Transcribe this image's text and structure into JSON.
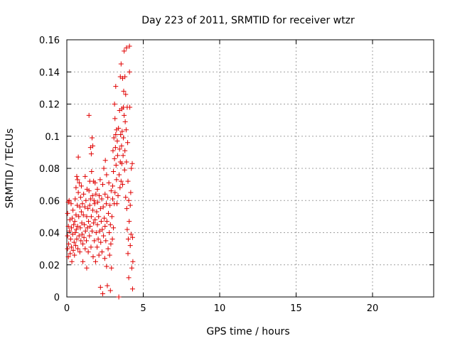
{
  "chart_data": {
    "type": "scatter",
    "title": "Day 223 of 2011, SRMTID for receiver wtzr",
    "xlabel": "GPS time / hours",
    "ylabel": "SRMTID / TECUs",
    "xlim": [
      0,
      24
    ],
    "ylim": [
      0,
      0.16
    ],
    "xticks": [
      0,
      5,
      10,
      15,
      20
    ],
    "yticks": [
      0,
      0.02,
      0.04,
      0.06,
      0.08,
      0.1,
      0.12,
      0.14,
      0.16
    ],
    "xtick_labels": [
      "0",
      "5",
      "10",
      "15",
      "20"
    ],
    "ytick_labels": [
      "0",
      "0.02",
      "0.04",
      "0.06",
      "0.08",
      "0.1",
      "0.12",
      "0.14",
      "0.16"
    ],
    "grid": true,
    "marker": "plus",
    "color": "#e00000",
    "series": [
      {
        "points": [
          [
            0.05,
            0.052
          ],
          [
            0.05,
            0.038
          ],
          [
            0.05,
            0.03
          ],
          [
            0.1,
            0.059
          ],
          [
            0.1,
            0.044
          ],
          [
            0.1,
            0.025
          ],
          [
            0.12,
            0.033
          ],
          [
            0.15,
            0.06
          ],
          [
            0.18,
            0.041
          ],
          [
            0.2,
            0.048
          ],
          [
            0.22,
            0.027
          ],
          [
            0.25,
            0.036
          ],
          [
            0.28,
            0.058
          ],
          [
            0.3,
            0.043
          ],
          [
            0.3,
            0.031
          ],
          [
            0.33,
            0.022
          ],
          [
            0.35,
            0.049
          ],
          [
            0.38,
            0.039
          ],
          [
            0.4,
            0.054
          ],
          [
            0.42,
            0.029
          ],
          [
            0.45,
            0.045
          ],
          [
            0.48,
            0.034
          ],
          [
            0.5,
            0.026
          ],
          [
            0.52,
            0.047
          ],
          [
            0.55,
            0.04
          ],
          [
            0.55,
            0.061
          ],
          [
            0.58,
            0.032
          ],
          [
            0.6,
            0.051
          ],
          [
            0.6,
            0.068
          ],
          [
            0.62,
            0.042
          ],
          [
            0.65,
            0.075
          ],
          [
            0.65,
            0.036
          ],
          [
            0.68,
            0.057
          ],
          [
            0.7,
            0.073
          ],
          [
            0.7,
            0.044
          ],
          [
            0.72,
            0.03
          ],
          [
            0.75,
            0.087
          ],
          [
            0.75,
            0.065
          ],
          [
            0.78,
            0.05
          ],
          [
            0.8,
            0.038
          ],
          [
            0.82,
            0.071
          ],
          [
            0.85,
            0.056
          ],
          [
            0.85,
            0.028
          ],
          [
            0.88,
            0.043
          ],
          [
            0.9,
            0.062
          ],
          [
            0.92,
            0.035
          ],
          [
            0.95,
            0.053
          ],
          [
            0.95,
            0.069
          ],
          [
            0.98,
            0.046
          ],
          [
            1.0,
            0.039
          ],
          [
            1.02,
            0.058
          ],
          [
            1.05,
            0.033
          ],
          [
            1.05,
            0.022
          ],
          [
            1.08,
            0.051
          ],
          [
            1.1,
            0.064
          ],
          [
            1.12,
            0.037
          ],
          [
            1.15,
            0.045
          ],
          [
            1.18,
            0.056
          ],
          [
            1.2,
            0.03
          ],
          [
            1.2,
            0.075
          ],
          [
            1.22,
            0.041
          ],
          [
            1.25,
            0.06
          ],
          [
            1.28,
            0.035
          ],
          [
            1.3,
            0.05
          ],
          [
            1.3,
            0.018
          ],
          [
            1.32,
            0.067
          ],
          [
            1.35,
            0.043
          ],
          [
            1.38,
            0.055
          ],
          [
            1.4,
            0.028
          ],
          [
            1.42,
            0.047
          ],
          [
            1.45,
            0.066
          ],
          [
            1.45,
            0.113
          ],
          [
            1.48,
            0.038
          ],
          [
            1.5,
            0.072
          ],
          [
            1.5,
            0.057
          ],
          [
            1.52,
            0.044
          ],
          [
            1.55,
            0.093
          ],
          [
            1.55,
            0.061
          ],
          [
            1.58,
            0.031
          ],
          [
            1.6,
            0.05
          ],
          [
            1.6,
            0.089
          ],
          [
            1.62,
            0.078
          ],
          [
            1.65,
            0.099
          ],
          [
            1.65,
            0.041
          ],
          [
            1.68,
            0.063
          ],
          [
            1.7,
            0.094
          ],
          [
            1.7,
            0.054
          ],
          [
            1.72,
            0.025
          ],
          [
            1.75,
            0.072
          ],
          [
            1.75,
            0.046
          ],
          [
            1.78,
            0.06
          ],
          [
            1.8,
            0.035
          ],
          [
            1.82,
            0.058
          ],
          [
            1.85,
            0.071
          ],
          [
            1.85,
            0.048
          ],
          [
            1.88,
            0.022
          ],
          [
            1.9,
            0.064
          ],
          [
            1.92,
            0.04
          ],
          [
            1.95,
            0.053
          ],
          [
            1.98,
            0.031
          ],
          [
            2.0,
            0.067
          ],
          [
            2.0,
            0.045
          ],
          [
            2.02,
            0.059
          ],
          [
            2.05,
            0.036
          ],
          [
            2.08,
            0.05
          ],
          [
            2.1,
            0.026
          ],
          [
            2.12,
            0.063
          ],
          [
            2.15,
            0.041
          ],
          [
            2.18,
            0.073
          ],
          [
            2.2,
            0.055
          ],
          [
            2.2,
            0.006
          ],
          [
            2.22,
            0.034
          ],
          [
            2.25,
            0.047
          ],
          [
            2.28,
            0.061
          ],
          [
            2.3,
            0.028
          ],
          [
            2.32,
            0.042
          ],
          [
            2.35,
            0.07
          ],
          [
            2.35,
            0.002
          ],
          [
            2.38,
            0.056
          ],
          [
            2.4,
            0.038
          ],
          [
            2.42,
            0.08
          ],
          [
            2.45,
            0.049
          ],
          [
            2.48,
            0.024
          ],
          [
            2.5,
            0.064
          ],
          [
            2.5,
            0.044
          ],
          [
            2.52,
            0.085
          ],
          [
            2.55,
            0.035
          ],
          [
            2.58,
            0.058
          ],
          [
            2.6,
            0.019
          ],
          [
            2.6,
            0.076
          ],
          [
            2.62,
            0.047
          ],
          [
            2.65,
            0.007
          ],
          [
            2.68,
            0.062
          ],
          [
            2.7,
            0.03
          ],
          [
            2.72,
            0.052
          ],
          [
            2.75,
            0.071
          ],
          [
            2.78,
            0.04
          ],
          [
            2.8,
            0.026
          ],
          [
            2.82,
            0.057
          ],
          [
            2.85,
            0.004
          ],
          [
            2.85,
            0.045
          ],
          [
            2.88,
            0.033
          ],
          [
            2.9,
            0.066
          ],
          [
            2.92,
            0.018
          ],
          [
            2.95,
            0.05
          ],
          [
            2.98,
            0.036
          ],
          [
            3.0,
            0.061
          ],
          [
            3.0,
            0.069
          ],
          [
            3.02,
            0.091
          ],
          [
            3.05,
            0.078
          ],
          [
            3.05,
            0.043
          ],
          [
            3.08,
            0.099
          ],
          [
            3.1,
            0.058
          ],
          [
            3.12,
            0.086
          ],
          [
            3.12,
            0.12
          ],
          [
            3.15,
            0.111
          ],
          [
            3.15,
            0.065
          ],
          [
            3.18,
            0.093
          ],
          [
            3.2,
            0.101
          ],
          [
            3.2,
            0.131
          ],
          [
            3.22,
            0.082
          ],
          [
            3.25,
            0.073
          ],
          [
            3.25,
            0.104
          ],
          [
            3.28,
            0.058
          ],
          [
            3.3,
            0.097
          ],
          [
            3.32,
            0.088
          ],
          [
            3.35,
            0.063
          ],
          [
            3.38,
            0.105
          ],
          [
            3.4,
            0.0
          ],
          [
            3.42,
            0.076
          ],
          [
            3.45,
            0.092
          ],
          [
            3.45,
            0.116
          ],
          [
            3.48,
            0.068
          ],
          [
            3.5,
            0.137
          ],
          [
            3.5,
            0.084
          ],
          [
            3.52,
            0.101
          ],
          [
            3.55,
            0.145
          ],
          [
            3.55,
            0.072
          ],
          [
            3.58,
            0.094
          ],
          [
            3.6,
            0.117
          ],
          [
            3.6,
            0.083
          ],
          [
            3.62,
            0.103
          ],
          [
            3.65,
            0.136
          ],
          [
            3.65,
            0.07
          ],
          [
            3.68,
            0.088
          ],
          [
            3.7,
            0.099
          ],
          [
            3.7,
            0.118
          ],
          [
            3.72,
            0.128
          ],
          [
            3.75,
            0.113
          ],
          [
            3.75,
            0.153
          ],
          [
            3.78,
            0.079
          ],
          [
            3.8,
            0.091
          ],
          [
            3.8,
            0.137
          ],
          [
            3.82,
            0.109
          ],
          [
            3.85,
            0.126
          ],
          [
            3.85,
            0.062
          ],
          [
            3.88,
            0.104
          ],
          [
            3.9,
            0.155
          ],
          [
            3.9,
            0.084
          ],
          [
            3.92,
            0.055
          ],
          [
            3.95,
            0.118
          ],
          [
            3.95,
            0.042
          ],
          [
            3.98,
            0.096
          ],
          [
            4.0,
            0.027
          ],
          [
            4.0,
            0.072
          ],
          [
            4.02,
            0.036
          ],
          [
            4.05,
            0.06
          ],
          [
            4.05,
            0.012
          ],
          [
            4.08,
            0.047
          ],
          [
            4.1,
            0.156
          ],
          [
            4.1,
            0.14
          ],
          [
            4.12,
            0.118
          ],
          [
            4.15,
            0.057
          ],
          [
            4.15,
            0.032
          ],
          [
            4.18,
            0.065
          ],
          [
            4.2,
            0.039
          ],
          [
            4.22,
            0.08
          ],
          [
            4.25,
            0.018
          ],
          [
            4.28,
            0.083
          ],
          [
            4.3,
            0.005
          ],
          [
            4.3,
            0.037
          ],
          [
            4.32,
            0.022
          ]
        ]
      }
    ]
  }
}
